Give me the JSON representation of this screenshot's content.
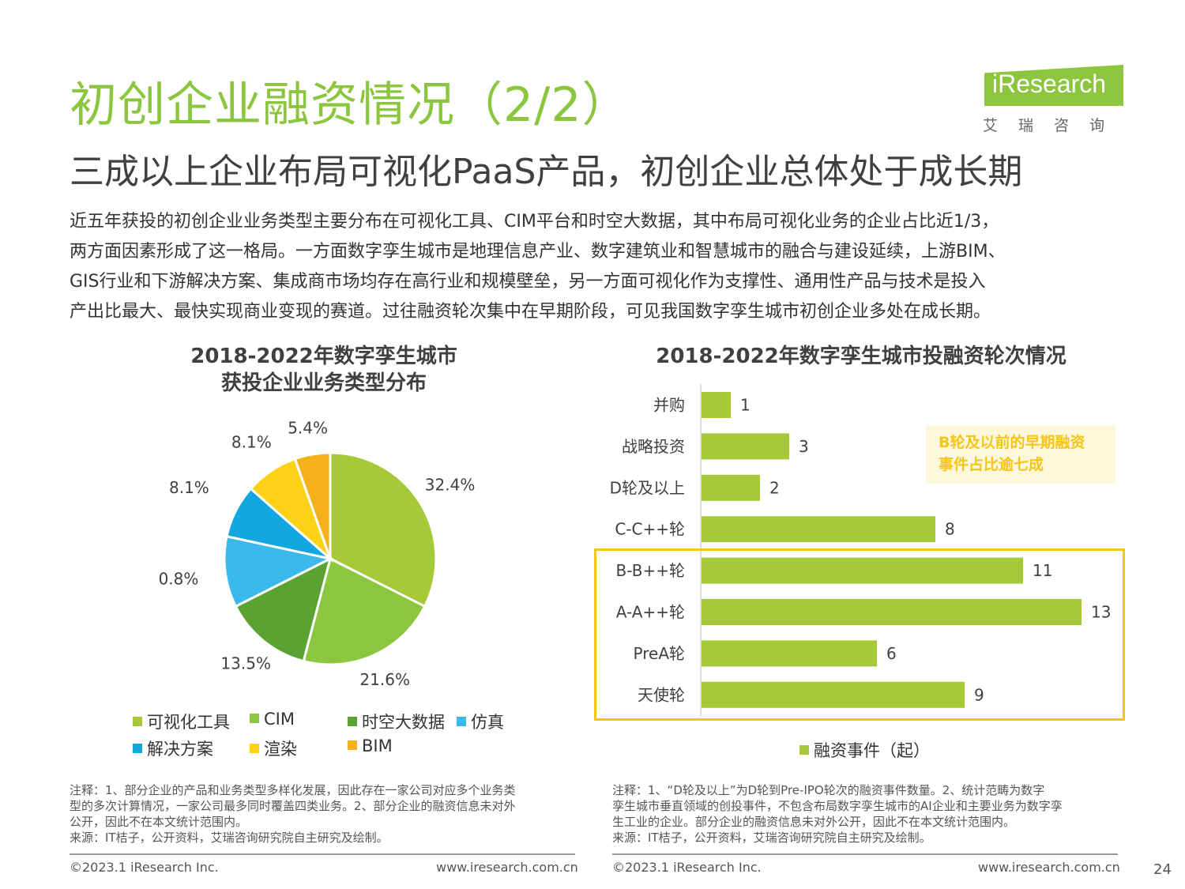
{
  "header": {
    "title": "初创企业融资情况（2/2）",
    "subtitle": "三成以上企业布局可视化PaaS产品，初创企业总体处于成长期",
    "logo_word": "iResearch",
    "logo_cn": "艾瑞咨询"
  },
  "intro": {
    "lines": [
      "近五年获投的初创企业业务类型主要分布在可视化工具、CIM平台和时空大数据，其中布局可视化业务的企业占比近1/3，",
      "两方面因素形成了这一格局。一方面数字孪生城市是地理信息产业、数字建筑业和智慧城市的融合与建设延续，上游BIM、",
      "GIS行业和下游解决方案、集成商市场均存在高行业和规模壁垒，另一方面可视化作为支撑性、通用性产品与技术是投入",
      "产出比最大、最快实现商业变现的赛道。过往融资轮次集中在早期阶段，可见我国数字孪生城市初创企业多处在成长期。"
    ]
  },
  "chart_data": [
    {
      "type": "pie",
      "title_lines": [
        "2018-2022年数字孪生城市",
        "获投企业业务类型分布"
      ],
      "labels": [
        "可视化工具",
        "CIM",
        "时空大数据",
        "仿真",
        "解决方案",
        "渲染",
        "BIM"
      ],
      "values": [
        32.4,
        21.6,
        13.5,
        10.8,
        8.1,
        8.1,
        5.4
      ],
      "value_labels": [
        "32.4%",
        "21.6%",
        "13.5%",
        "10.8%",
        "8.1%",
        "8.1%",
        "5.4%"
      ],
      "colors": [
        "#a6c93a",
        "#8cc63f",
        "#5aa333",
        "#3bb9ea",
        "#13a7e0",
        "#fcd116",
        "#f4b11c"
      ],
      "legend_position": "bottom"
    },
    {
      "type": "bar",
      "orientation": "horizontal",
      "title": "2018-2022年数字孪生城市投融资轮次情况",
      "categories": [
        "并购",
        "战略投资",
        "D轮及以上",
        "C-C++轮",
        "B-B++轮",
        "A-A++轮",
        "PreA轮",
        "天使轮"
      ],
      "series": [
        {
          "name": "融资事件（起）",
          "values": [
            1,
            3,
            2,
            8,
            11,
            13,
            6,
            9
          ]
        }
      ],
      "color": "#a6c93a",
      "xlim": [
        0,
        13
      ],
      "legend_position": "bottom",
      "callout_lines": [
        "B轮及以前的早期融资",
        "事件占比逾七成"
      ]
    }
  ],
  "notes": {
    "left": [
      "注释：1、部分企业的产品和业务类型多样化发展，因此存在一家公司对应多个业务类",
      "型的多次计算情况，一家公司最多同时覆盖四类业务。2、部分企业的融资信息未对外",
      "公开，因此不在本文统计范围内。",
      "来源：IT桔子，公开资料，艾瑞咨询研究院自主研究及绘制。"
    ],
    "right": [
      "注释：1、“D轮及以上”为D轮到Pre-IPO轮次的融资事件数量。2、统计范畴为数字",
      "孪生城市垂直领域的创投事件，不包含布局数字孪生城市的AI企业和主要业务为数字孪",
      "生工业的企业。部分企业的融资信息未对外公开，因此不在本文统计范围内。",
      "来源：IT桔子，公开资料，艾瑞咨询研究院自主研究及绘制。"
    ]
  },
  "footer": {
    "copyright": "©2023.1 iResearch Inc.",
    "url": "www.iresearch.com.cn",
    "page": "24"
  }
}
